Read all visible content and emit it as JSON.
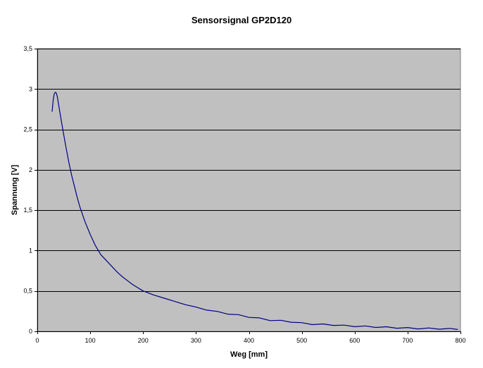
{
  "chart_data": {
    "type": "line",
    "title": "Sensorsignal GP2D120",
    "xlabel": "Weg [mm]",
    "ylabel": "Spannung [V]",
    "xlim": [
      0,
      800
    ],
    "ylim": [
      0,
      3.5
    ],
    "x_ticks": [
      0,
      100,
      200,
      300,
      400,
      500,
      600,
      700,
      800
    ],
    "x_tick_labels": [
      "0",
      "100",
      "200",
      "300",
      "400",
      "500",
      "600",
      "700",
      "800"
    ],
    "y_ticks": [
      0,
      0.5,
      1,
      1.5,
      2,
      2.5,
      3,
      3.5
    ],
    "y_tick_labels": [
      "0",
      "0,5",
      "1",
      "1,5",
      "2",
      "2,5",
      "3",
      "3,5"
    ],
    "grid": "horizontal",
    "legend": "none",
    "plot_background": "#c0c0c0",
    "line_color": "#000080",
    "series": [
      {
        "values": [
          [
            28,
            2.72
          ],
          [
            30,
            2.86
          ],
          [
            32,
            2.94
          ],
          [
            34,
            2.96
          ],
          [
            36,
            2.95
          ],
          [
            38,
            2.9
          ],
          [
            40,
            2.82
          ],
          [
            43,
            2.7
          ],
          [
            46,
            2.58
          ],
          [
            50,
            2.43
          ],
          [
            55,
            2.25
          ],
          [
            60,
            2.08
          ],
          [
            65,
            1.93
          ],
          [
            70,
            1.8
          ],
          [
            75,
            1.67
          ],
          [
            80,
            1.55
          ],
          [
            90,
            1.36
          ],
          [
            100,
            1.2
          ],
          [
            110,
            1.06
          ],
          [
            120,
            0.95
          ],
          [
            130,
            0.88
          ],
          [
            140,
            0.81
          ],
          [
            150,
            0.74
          ],
          [
            160,
            0.68
          ],
          [
            170,
            0.63
          ],
          [
            180,
            0.58
          ],
          [
            190,
            0.54
          ],
          [
            200,
            0.5
          ],
          [
            220,
            0.45
          ],
          [
            240,
            0.41
          ],
          [
            260,
            0.37
          ],
          [
            280,
            0.33
          ],
          [
            300,
            0.3
          ],
          [
            320,
            0.27
          ],
          [
            340,
            0.24
          ],
          [
            360,
            0.22
          ],
          [
            380,
            0.2
          ],
          [
            400,
            0.18
          ],
          [
            420,
            0.16
          ],
          [
            440,
            0.14
          ],
          [
            460,
            0.13
          ],
          [
            480,
            0.12
          ],
          [
            500,
            0.1
          ],
          [
            520,
            0.09
          ],
          [
            540,
            0.085
          ],
          [
            560,
            0.08
          ],
          [
            580,
            0.07
          ],
          [
            600,
            0.065
          ],
          [
            620,
            0.06
          ],
          [
            640,
            0.055
          ],
          [
            660,
            0.05
          ],
          [
            680,
            0.045
          ],
          [
            700,
            0.04
          ],
          [
            720,
            0.037
          ],
          [
            740,
            0.035
          ],
          [
            760,
            0.033
          ],
          [
            780,
            0.03
          ],
          [
            795,
            0.03
          ]
        ]
      }
    ]
  }
}
